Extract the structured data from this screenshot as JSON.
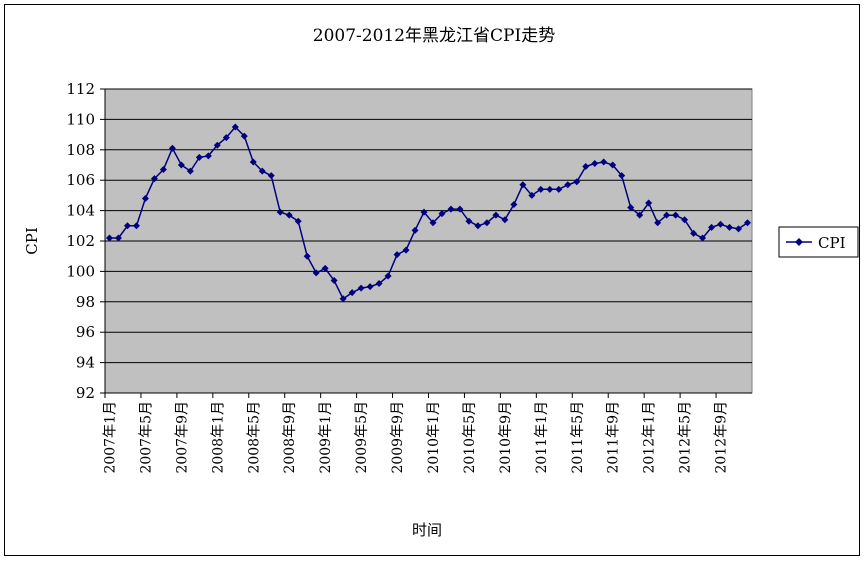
{
  "chart_data": {
    "type": "line",
    "title": "2007-2012年黑龙江省CPI走势",
    "xlabel": "时间",
    "ylabel": "CPI",
    "ylim": [
      92,
      112
    ],
    "ytick_step": 2,
    "grid": true,
    "legend": "right",
    "x_tick_labels": [
      "2007年1月",
      "2007年5月",
      "2007年9月",
      "2008年1月",
      "2008年5月",
      "2008年9月",
      "2009年1月",
      "2009年5月",
      "2009年9月",
      "2010年1月",
      "2010年5月",
      "2010年9月",
      "2011年1月",
      "2011年5月",
      "2011年9月",
      "2012年1月",
      "2012年5月",
      "2012年9月"
    ],
    "series": [
      {
        "name": "CPI",
        "color": "#000080",
        "values": [
          102.2,
          102.2,
          103.0,
          103.0,
          104.8,
          106.1,
          106.7,
          108.1,
          107.0,
          106.6,
          107.5,
          107.6,
          108.3,
          108.8,
          109.5,
          108.9,
          107.2,
          106.6,
          106.3,
          103.9,
          103.7,
          103.3,
          101.0,
          99.9,
          100.2,
          99.4,
          98.2,
          98.6,
          98.9,
          99.0,
          99.2,
          99.7,
          101.1,
          101.4,
          102.7,
          103.9,
          103.2,
          103.8,
          104.1,
          104.1,
          103.3,
          103.0,
          103.2,
          103.7,
          103.4,
          104.4,
          105.7,
          105.0,
          105.4,
          105.4,
          105.4,
          105.7,
          105.9,
          106.9,
          107.1,
          107.2,
          107.0,
          106.3,
          104.2,
          103.7,
          104.5,
          103.2,
          103.7,
          103.7,
          103.4,
          102.5,
          102.2,
          102.9,
          103.1,
          102.9,
          102.8,
          103.2
        ]
      }
    ]
  }
}
